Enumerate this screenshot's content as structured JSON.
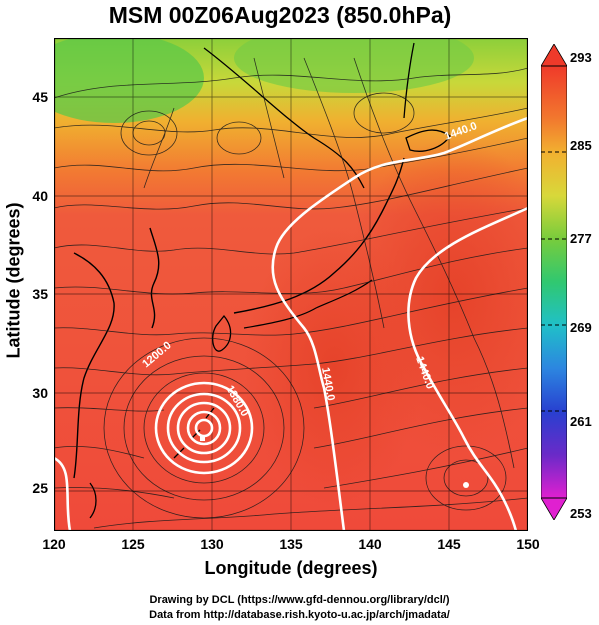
{
  "title": "MSM 00Z06Aug2023 (850.0hPa)",
  "xlabel": "Longitude (degrees)",
  "ylabel": "Latitude  (degrees)",
  "x_ticks": [
    "120",
    "125",
    "130",
    "135",
    "140",
    "145",
    "150"
  ],
  "y_ticks": [
    "45",
    "40",
    "35",
    "30",
    "25"
  ],
  "colorbar_ticks": [
    "293",
    "285",
    "277",
    "269",
    "261",
    "253"
  ],
  "contour_labels": [
    "1440.0",
    "1440.0",
    "1440.0",
    "1380.0",
    "1200.0"
  ],
  "credit_line1": "Drawing by DCL (https://www.gfd-dennou.org/library/dcl/)",
  "credit_line2": "Data from http://database.rish.kyoto-u.ac.jp/arch/jmadata/",
  "map": {
    "lon_range": [
      120,
      150
    ],
    "lat_range": [
      22.5,
      47.5
    ],
    "colorbar_range": [
      253,
      293
    ]
  },
  "colors": {
    "warm": "#ef4a3a",
    "warm_dark": "#e8442a",
    "mid": "#f28030",
    "cool": "#a8d040",
    "cold": "#58c848"
  }
}
